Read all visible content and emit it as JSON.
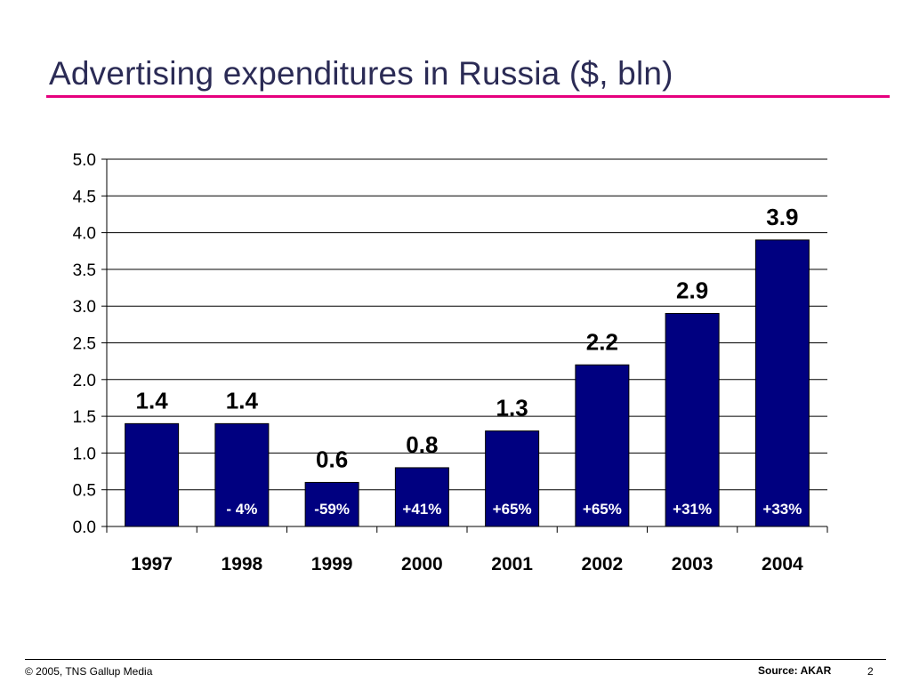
{
  "slide": {
    "title": "Advertising expenditures in Russia ($, bln)",
    "accent_color": "#e6007e"
  },
  "footer": {
    "copyright": "© 2005, TNS Gallup Media",
    "source": "Source: AKAR",
    "page_number": "2"
  },
  "chart_data": {
    "type": "bar",
    "categories": [
      "1997",
      "1998",
      "1999",
      "2000",
      "2001",
      "2002",
      "2003",
      "2004"
    ],
    "values": [
      1.4,
      1.4,
      0.6,
      0.8,
      1.3,
      2.2,
      2.9,
      3.9
    ],
    "value_labels": [
      "1.4",
      "1.4",
      "0.6",
      "0.8",
      "1.3",
      "2.2",
      "2.9",
      "3.9"
    ],
    "growth_labels": [
      "",
      "- 4%",
      "-59%",
      "+41%",
      "+65%",
      "+65%",
      "+31%",
      "+33%"
    ],
    "yticks": [
      "0.0",
      "0.5",
      "1.0",
      "1.5",
      "2.0",
      "2.5",
      "3.0",
      "3.5",
      "4.0",
      "4.5",
      "5.0"
    ],
    "ylim": [
      0,
      5
    ],
    "grid": true,
    "bar_color": "#000080",
    "growth_label_color": "#ffffff",
    "xlabel": "",
    "ylabel": ""
  }
}
